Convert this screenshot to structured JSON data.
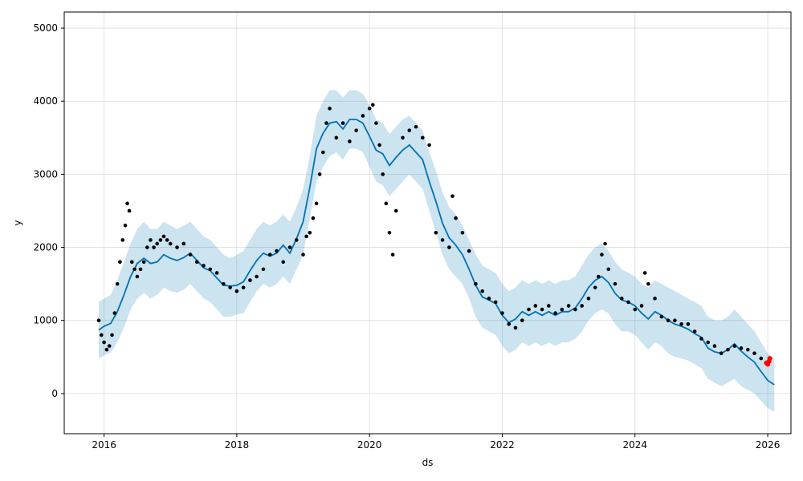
{
  "chart_data": {
    "type": "line",
    "xlabel": "ds",
    "ylabel": "y",
    "xlim": [
      2015.4,
      2026.35
    ],
    "ylim": [
      -550,
      5220
    ],
    "grid": true,
    "x_ticks": [
      {
        "value": 2016,
        "label": "2016"
      },
      {
        "value": 2018,
        "label": "2018"
      },
      {
        "value": 2020,
        "label": "2020"
      },
      {
        "value": 2022,
        "label": "2022"
      },
      {
        "value": 2024,
        "label": "2024"
      },
      {
        "value": 2026,
        "label": "2026"
      }
    ],
    "y_ticks": [
      {
        "value": 0,
        "label": "0"
      },
      {
        "value": 1000,
        "label": "1000"
      },
      {
        "value": 2000,
        "label": "2000"
      },
      {
        "value": 3000,
        "label": "3000"
      },
      {
        "value": 4000,
        "label": "4000"
      },
      {
        "value": 5000,
        "label": "5000"
      }
    ],
    "colors": {
      "forecast_line": "#0072B2",
      "uncertainty_band": "#0072B2",
      "observed_points": "#000000",
      "highlight_points": "#FF0000",
      "grid": "#dddddd"
    },
    "series": [
      {
        "kind": "uncertainty_interval",
        "x": [
          2015.92,
          2016.0,
          2016.1,
          2016.2,
          2016.3,
          2016.4,
          2016.5,
          2016.6,
          2016.7,
          2016.8,
          2016.9,
          2017.0,
          2017.1,
          2017.2,
          2017.3,
          2017.4,
          2017.5,
          2017.6,
          2017.7,
          2017.8,
          2017.9,
          2018.0,
          2018.1,
          2018.2,
          2018.3,
          2018.4,
          2018.5,
          2018.6,
          2018.7,
          2018.8,
          2018.9,
          2019.0,
          2019.1,
          2019.2,
          2019.3,
          2019.4,
          2019.5,
          2019.6,
          2019.7,
          2019.8,
          2019.9,
          2020.0,
          2020.1,
          2020.2,
          2020.3,
          2020.4,
          2020.5,
          2020.6,
          2020.7,
          2020.8,
          2020.9,
          2021.0,
          2021.1,
          2021.2,
          2021.3,
          2021.4,
          2021.5,
          2021.6,
          2021.7,
          2021.8,
          2021.9,
          2022.0,
          2022.1,
          2022.2,
          2022.3,
          2022.4,
          2022.5,
          2022.6,
          2022.7,
          2022.8,
          2022.9,
          2023.0,
          2023.1,
          2023.2,
          2023.3,
          2023.4,
          2023.5,
          2023.6,
          2023.7,
          2023.8,
          2023.9,
          2024.0,
          2024.1,
          2024.2,
          2024.3,
          2024.4,
          2024.5,
          2024.6,
          2024.7,
          2024.8,
          2024.9,
          2025.0,
          2025.1,
          2025.2,
          2025.3,
          2025.4,
          2025.5,
          2025.6,
          2025.7,
          2025.8,
          2025.9,
          2026.0,
          2026.1
        ],
        "lower": [
          480,
          520,
          560,
          700,
          900,
          1150,
          1300,
          1380,
          1300,
          1350,
          1450,
          1400,
          1380,
          1420,
          1500,
          1400,
          1300,
          1250,
          1150,
          1050,
          1050,
          1080,
          1100,
          1250,
          1400,
          1500,
          1450,
          1500,
          1600,
          1500,
          1700,
          1900,
          2400,
          2900,
          3100,
          3250,
          3300,
          3200,
          3350,
          3350,
          3300,
          3100,
          2900,
          2850,
          2700,
          2800,
          2900,
          3000,
          2900,
          2800,
          2500,
          2200,
          1900,
          1700,
          1600,
          1500,
          1300,
          1050,
          900,
          850,
          800,
          650,
          550,
          600,
          700,
          650,
          700,
          650,
          700,
          650,
          700,
          700,
          750,
          850,
          1000,
          1100,
          1150,
          1100,
          950,
          850,
          850,
          800,
          700,
          600,
          700,
          650,
          550,
          500,
          480,
          450,
          400,
          350,
          200,
          150,
          100,
          150,
          200,
          100,
          50,
          0,
          -100,
          -200,
          -250
        ],
        "upper": [
          1250,
          1300,
          1350,
          1550,
          1800,
          2050,
          2250,
          2350,
          2250,
          2250,
          2350,
          2300,
          2250,
          2300,
          2350,
          2250,
          2150,
          2100,
          2000,
          1900,
          1850,
          1900,
          1950,
          2100,
          2250,
          2350,
          2300,
          2350,
          2450,
          2350,
          2550,
          2800,
          3250,
          3800,
          4000,
          4150,
          4150,
          4050,
          4150,
          4150,
          4100,
          3950,
          3750,
          3700,
          3550,
          3650,
          3750,
          3800,
          3700,
          3600,
          3300,
          3050,
          2750,
          2550,
          2450,
          2300,
          2100,
          1900,
          1750,
          1700,
          1650,
          1500,
          1400,
          1450,
          1550,
          1500,
          1550,
          1500,
          1550,
          1500,
          1550,
          1550,
          1600,
          1750,
          1900,
          2000,
          2050,
          1950,
          1800,
          1700,
          1650,
          1600,
          1500,
          1450,
          1550,
          1500,
          1450,
          1400,
          1350,
          1300,
          1250,
          1200,
          1050,
          1000,
          1000,
          1050,
          1150,
          1050,
          950,
          850,
          700,
          550,
          480
        ]
      },
      {
        "kind": "forecast",
        "x": [
          2015.92,
          2016.0,
          2016.1,
          2016.2,
          2016.3,
          2016.4,
          2016.5,
          2016.6,
          2016.7,
          2016.8,
          2016.9,
          2017.0,
          2017.1,
          2017.2,
          2017.3,
          2017.4,
          2017.5,
          2017.6,
          2017.7,
          2017.8,
          2017.9,
          2018.0,
          2018.1,
          2018.2,
          2018.3,
          2018.4,
          2018.5,
          2018.6,
          2018.7,
          2018.8,
          2018.9,
          2019.0,
          2019.1,
          2019.2,
          2019.3,
          2019.4,
          2019.5,
          2019.6,
          2019.7,
          2019.8,
          2019.9,
          2020.0,
          2020.1,
          2020.2,
          2020.3,
          2020.4,
          2020.5,
          2020.6,
          2020.7,
          2020.8,
          2020.9,
          2021.0,
          2021.1,
          2021.2,
          2021.3,
          2021.4,
          2021.5,
          2021.6,
          2021.7,
          2021.8,
          2021.9,
          2022.0,
          2022.1,
          2022.2,
          2022.3,
          2022.4,
          2022.5,
          2022.6,
          2022.7,
          2022.8,
          2022.9,
          2023.0,
          2023.1,
          2023.2,
          2023.3,
          2023.4,
          2023.5,
          2023.6,
          2023.7,
          2023.8,
          2023.9,
          2024.0,
          2024.1,
          2024.2,
          2024.3,
          2024.4,
          2024.5,
          2024.6,
          2024.7,
          2024.8,
          2024.9,
          2025.0,
          2025.1,
          2025.2,
          2025.3,
          2025.4,
          2025.5,
          2025.6,
          2025.7,
          2025.8,
          2025.9,
          2026.0,
          2026.1
        ],
        "y": [
          870,
          920,
          960,
          1120,
          1350,
          1600,
          1780,
          1850,
          1780,
          1800,
          1900,
          1850,
          1820,
          1860,
          1920,
          1820,
          1720,
          1680,
          1580,
          1480,
          1470,
          1480,
          1530,
          1680,
          1820,
          1920,
          1880,
          1920,
          2030,
          1920,
          2120,
          2350,
          2820,
          3350,
          3560,
          3700,
          3720,
          3620,
          3750,
          3750,
          3700,
          3520,
          3330,
          3280,
          3120,
          3230,
          3330,
          3400,
          3300,
          3200,
          2900,
          2630,
          2330,
          2130,
          2030,
          1900,
          1700,
          1480,
          1320,
          1280,
          1230,
          1070,
          970,
          1020,
          1120,
          1070,
          1120,
          1070,
          1120,
          1070,
          1120,
          1120,
          1170,
          1300,
          1450,
          1550,
          1600,
          1520,
          1370,
          1280,
          1250,
          1200,
          1100,
          1020,
          1120,
          1070,
          1000,
          950,
          920,
          880,
          820,
          770,
          620,
          570,
          550,
          600,
          680,
          580,
          500,
          430,
          300,
          180,
          120
        ]
      },
      {
        "kind": "observed",
        "x": [
          2015.92,
          2015.96,
          2016.0,
          2016.04,
          2016.08,
          2016.12,
          2016.16,
          2016.2,
          2016.24,
          2016.28,
          2016.32,
          2016.35,
          2016.38,
          2016.42,
          2016.46,
          2016.5,
          2016.55,
          2016.6,
          2016.65,
          2016.7,
          2016.75,
          2016.8,
          2016.85,
          2016.9,
          2016.95,
          2017.0,
          2017.1,
          2017.2,
          2017.3,
          2017.4,
          2017.5,
          2017.6,
          2017.7,
          2017.8,
          2017.9,
          2018.0,
          2018.1,
          2018.2,
          2018.3,
          2018.4,
          2018.5,
          2018.6,
          2018.7,
          2018.8,
          2018.9,
          2019.0,
          2019.05,
          2019.1,
          2019.15,
          2019.2,
          2019.25,
          2019.3,
          2019.35,
          2019.4,
          2019.5,
          2019.6,
          2019.7,
          2019.8,
          2019.9,
          2020.0,
          2020.05,
          2020.1,
          2020.15,
          2020.2,
          2020.25,
          2020.3,
          2020.35,
          2020.4,
          2020.5,
          2020.6,
          2020.7,
          2020.8,
          2020.9,
          2021.0,
          2021.1,
          2021.2,
          2021.25,
          2021.3,
          2021.4,
          2021.5,
          2021.6,
          2021.7,
          2021.8,
          2021.9,
          2022.0,
          2022.1,
          2022.2,
          2022.3,
          2022.4,
          2022.5,
          2022.6,
          2022.7,
          2022.8,
          2022.9,
          2023.0,
          2023.1,
          2023.2,
          2023.3,
          2023.4,
          2023.45,
          2023.5,
          2023.55,
          2023.6,
          2023.7,
          2023.8,
          2023.9,
          2024.0,
          2024.1,
          2024.15,
          2024.2,
          2024.3,
          2024.4,
          2024.5,
          2024.6,
          2024.7,
          2024.8,
          2024.9,
          2025.0,
          2025.1,
          2025.2,
          2025.3,
          2025.4,
          2025.5,
          2025.6,
          2025.7,
          2025.8,
          2025.9
        ],
        "y": [
          1000,
          800,
          700,
          600,
          650,
          800,
          1100,
          1500,
          1800,
          2100,
          2300,
          2600,
          2500,
          1800,
          1700,
          1600,
          1700,
          1800,
          2000,
          2100,
          2000,
          2050,
          2100,
          2150,
          2100,
          2050,
          2000,
          2050,
          1900,
          1800,
          1750,
          1700,
          1650,
          1500,
          1450,
          1400,
          1450,
          1550,
          1600,
          1700,
          1900,
          1950,
          1800,
          2000,
          2100,
          1900,
          2150,
          2200,
          2400,
          2600,
          3000,
          3300,
          3700,
          3900,
          3500,
          3700,
          3450,
          3600,
          3800,
          3900,
          3950,
          3700,
          3400,
          3000,
          2600,
          2200,
          1900,
          2500,
          3500,
          3600,
          3650,
          3500,
          3400,
          2200,
          2100,
          2000,
          2700,
          2400,
          2200,
          1950,
          1500,
          1400,
          1300,
          1250,
          1100,
          950,
          900,
          1000,
          1150,
          1200,
          1150,
          1200,
          1100,
          1150,
          1200,
          1150,
          1200,
          1300,
          1450,
          1600,
          1900,
          2050,
          1700,
          1500,
          1300,
          1250,
          1150,
          1200,
          1650,
          1500,
          1300,
          1050,
          1000,
          1000,
          950,
          950,
          850,
          750,
          700,
          650,
          550,
          600,
          650,
          620,
          600,
          550,
          480
        ]
      },
      {
        "kind": "highlight",
        "x": [
          2025.98,
          2026.0,
          2026.02,
          2026.03
        ],
        "y": [
          420,
          400,
          440,
          480
        ]
      }
    ]
  }
}
